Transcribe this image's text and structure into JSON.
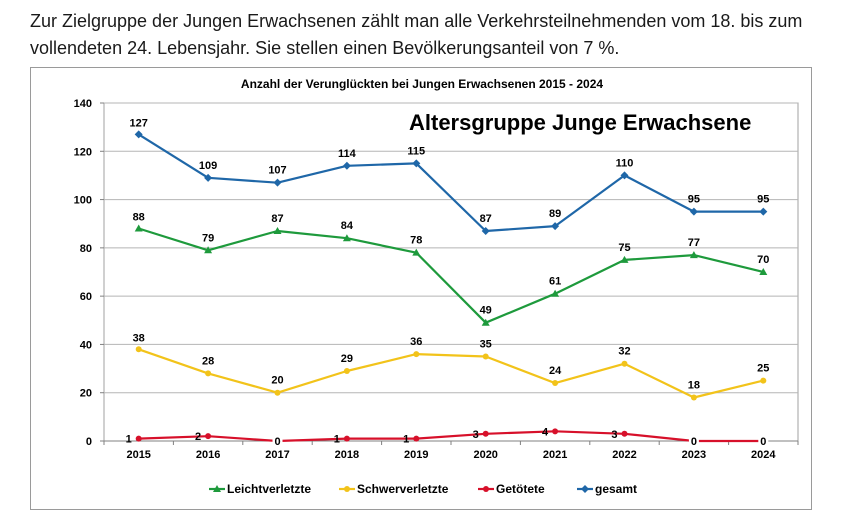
{
  "intro_text": "Zur Zielgruppe der Jungen Erwachsenen zählt man alle Verkehrsteilnehmenden vom 18. bis zum vollendeten 24. Lebensjahr. Sie stellen einen Bevölkerungsanteil von 7 %.",
  "chart_data": {
    "type": "line",
    "title": "Anzahl der Verunglückten bei Jungen Erwachsenen 2015 - 2024",
    "annotation": "Altersgruppe Junge Erwachsene",
    "categories": [
      "2015",
      "2016",
      "2017",
      "2018",
      "2019",
      "2020",
      "2021",
      "2022",
      "2023",
      "2024"
    ],
    "ylim": [
      0,
      140
    ],
    "yticks": [
      "0",
      "20",
      "40",
      "60",
      "80",
      "100",
      "120",
      "140"
    ],
    "grid": true,
    "legend_position": "bottom",
    "series": [
      {
        "name": "Leichtverletzte",
        "color": "#1e9a3c",
        "marker": "triangle",
        "values": [
          88,
          79,
          87,
          84,
          78,
          49,
          61,
          75,
          77,
          70
        ]
      },
      {
        "name": "Schwerverletzte",
        "color": "#f2c31a",
        "marker": "circle",
        "values": [
          38,
          28,
          20,
          29,
          36,
          35,
          24,
          32,
          18,
          25
        ]
      },
      {
        "name": "Getötete",
        "color": "#d7102a",
        "marker": "circle",
        "values": [
          1,
          2,
          0,
          1,
          1,
          3,
          4,
          3,
          0,
          0
        ]
      },
      {
        "name": "gesamt",
        "color": "#1f67a8",
        "marker": "diamond",
        "values": [
          127,
          109,
          107,
          114,
          115,
          87,
          89,
          110,
          95,
          95
        ]
      }
    ]
  }
}
